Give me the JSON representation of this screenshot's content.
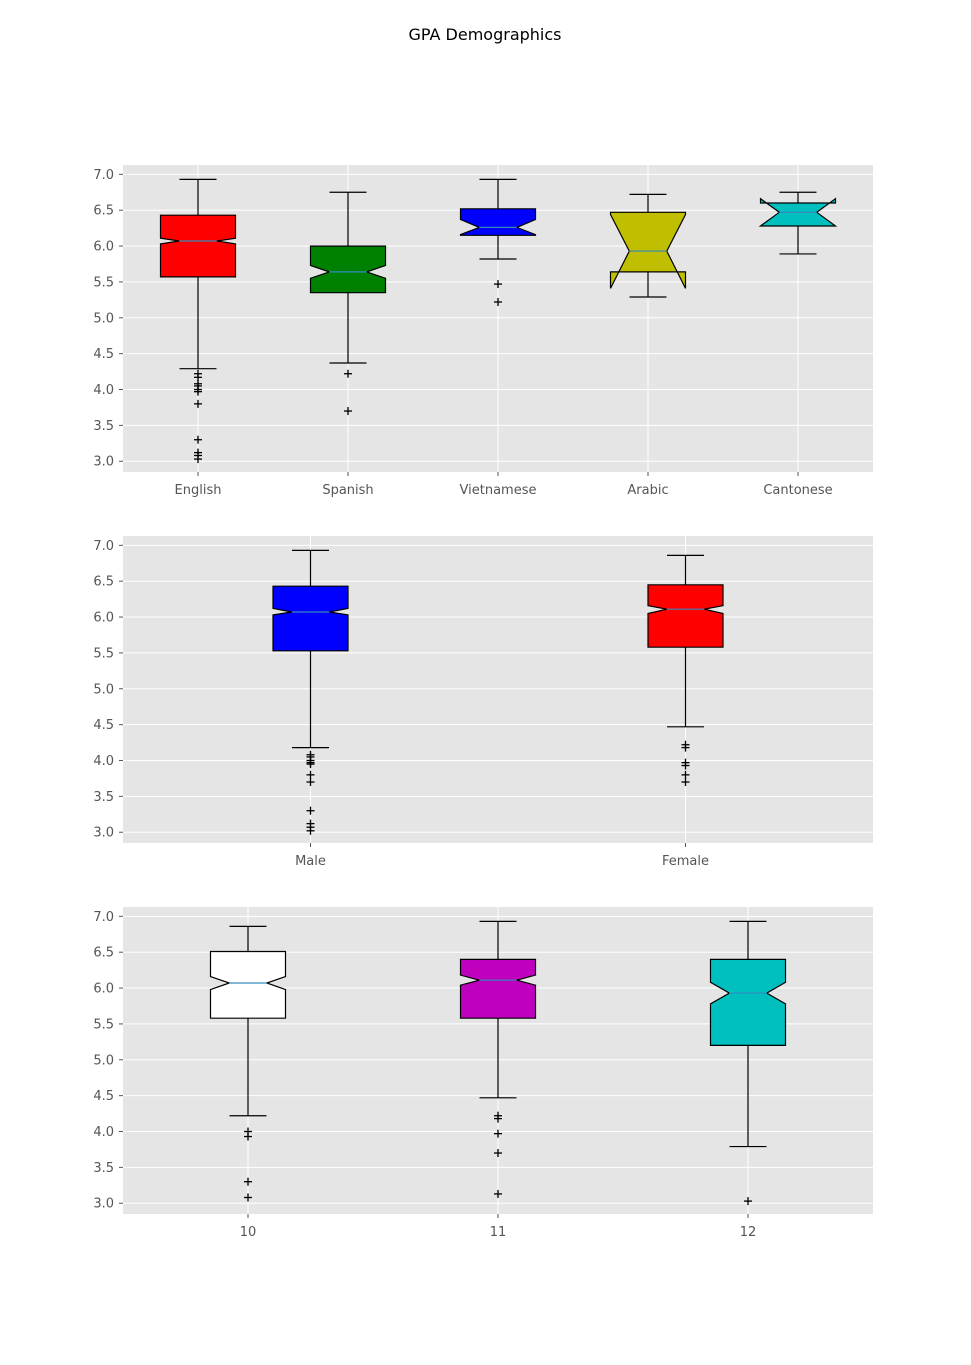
{
  "figure": {
    "title": "GPA Demographics"
  },
  "chart_data": [
    {
      "type": "boxplot",
      "notched": true,
      "ylim": [
        2.85,
        7.13
      ],
      "yticks": [
        3.0,
        3.5,
        4.0,
        4.5,
        5.0,
        5.5,
        6.0,
        6.5,
        7.0
      ],
      "grid": true,
      "categories": [
        "English",
        "Spanish",
        "Vietnamese",
        "Arabic",
        "Cantonese"
      ],
      "boxes": [
        {
          "label": "English",
          "color": "#ff0000",
          "q1": 5.57,
          "median": 6.07,
          "q3": 6.43,
          "notch_low": 6.03,
          "notch_high": 6.11,
          "whisker_low": 4.29,
          "whisker_high": 6.93,
          "outliers": [
            4.22,
            4.17,
            4.08,
            4.05,
            4.0,
            3.97,
            3.8,
            3.3,
            3.12,
            3.08,
            3.03
          ]
        },
        {
          "label": "Spanish",
          "color": "#008000",
          "q1": 5.35,
          "median": 5.64,
          "q3": 6.0,
          "notch_low": 5.55,
          "notch_high": 5.73,
          "whisker_low": 4.37,
          "whisker_high": 6.75,
          "outliers": [
            4.22,
            3.7
          ]
        },
        {
          "label": "Vietnamese",
          "color": "#0000ff",
          "q1": 6.15,
          "median": 6.26,
          "q3": 6.52,
          "notch_low": 6.16,
          "notch_high": 6.37,
          "whisker_low": 5.82,
          "whisker_high": 6.93,
          "outliers": [
            5.47,
            5.22
          ]
        },
        {
          "label": "Arabic",
          "color": "#bfbf00",
          "q1": 5.64,
          "median": 5.93,
          "q3": 6.47,
          "notch_low": 5.41,
          "notch_high": 6.44,
          "whisker_low": 5.29,
          "whisker_high": 6.72,
          "outliers": []
        },
        {
          "label": "Cantonese",
          "color": "#00bfbf",
          "q1": 6.28,
          "median": 6.47,
          "q3": 6.6,
          "notch_low": 6.28,
          "notch_high": 6.66,
          "whisker_low": 5.89,
          "whisker_high": 6.75,
          "outliers": []
        }
      ]
    },
    {
      "type": "boxplot",
      "notched": true,
      "ylim": [
        2.85,
        7.13
      ],
      "yticks": [
        3.0,
        3.5,
        4.0,
        4.5,
        5.0,
        5.5,
        6.0,
        6.5,
        7.0
      ],
      "grid": true,
      "categories": [
        "Male",
        "Female"
      ],
      "boxes": [
        {
          "label": "Male",
          "color": "#0000ff",
          "q1": 5.53,
          "median": 6.07,
          "q3": 6.43,
          "notch_low": 6.03,
          "notch_high": 6.12,
          "whisker_low": 4.18,
          "whisker_high": 6.93,
          "outliers": [
            4.08,
            4.05,
            4.0,
            3.97,
            3.95,
            3.8,
            3.7,
            3.3,
            3.12,
            3.07,
            3.02
          ]
        },
        {
          "label": "Female",
          "color": "#ff0000",
          "q1": 5.58,
          "median": 6.11,
          "q3": 6.45,
          "notch_low": 6.05,
          "notch_high": 6.16,
          "whisker_low": 4.47,
          "whisker_high": 6.86,
          "outliers": [
            4.22,
            4.18,
            3.97,
            3.93,
            3.8,
            3.7
          ]
        }
      ]
    },
    {
      "type": "boxplot",
      "notched": true,
      "ylim": [
        2.85,
        7.13
      ],
      "yticks": [
        3.0,
        3.5,
        4.0,
        4.5,
        5.0,
        5.5,
        6.0,
        6.5,
        7.0
      ],
      "grid": true,
      "categories": [
        "10",
        "11",
        "12"
      ],
      "boxes": [
        {
          "label": "10",
          "color": "#ffffff",
          "q1": 5.58,
          "median": 6.07,
          "q3": 6.51,
          "notch_low": 5.98,
          "notch_high": 6.16,
          "whisker_low": 4.22,
          "whisker_high": 6.86,
          "outliers": [
            4.0,
            3.93,
            3.3,
            3.08
          ]
        },
        {
          "label": "11",
          "color": "#bf00bf",
          "q1": 5.58,
          "median": 6.11,
          "q3": 6.4,
          "notch_low": 6.04,
          "notch_high": 6.18,
          "whisker_low": 4.47,
          "whisker_high": 6.93,
          "outliers": [
            4.22,
            4.18,
            3.97,
            3.7,
            3.13
          ]
        },
        {
          "label": "12",
          "color": "#00bfbf",
          "q1": 5.2,
          "median": 5.93,
          "q3": 6.4,
          "notch_low": 5.78,
          "notch_high": 6.08,
          "whisker_low": 3.79,
          "whisker_high": 6.93,
          "outliers": [
            3.03
          ]
        }
      ]
    }
  ]
}
